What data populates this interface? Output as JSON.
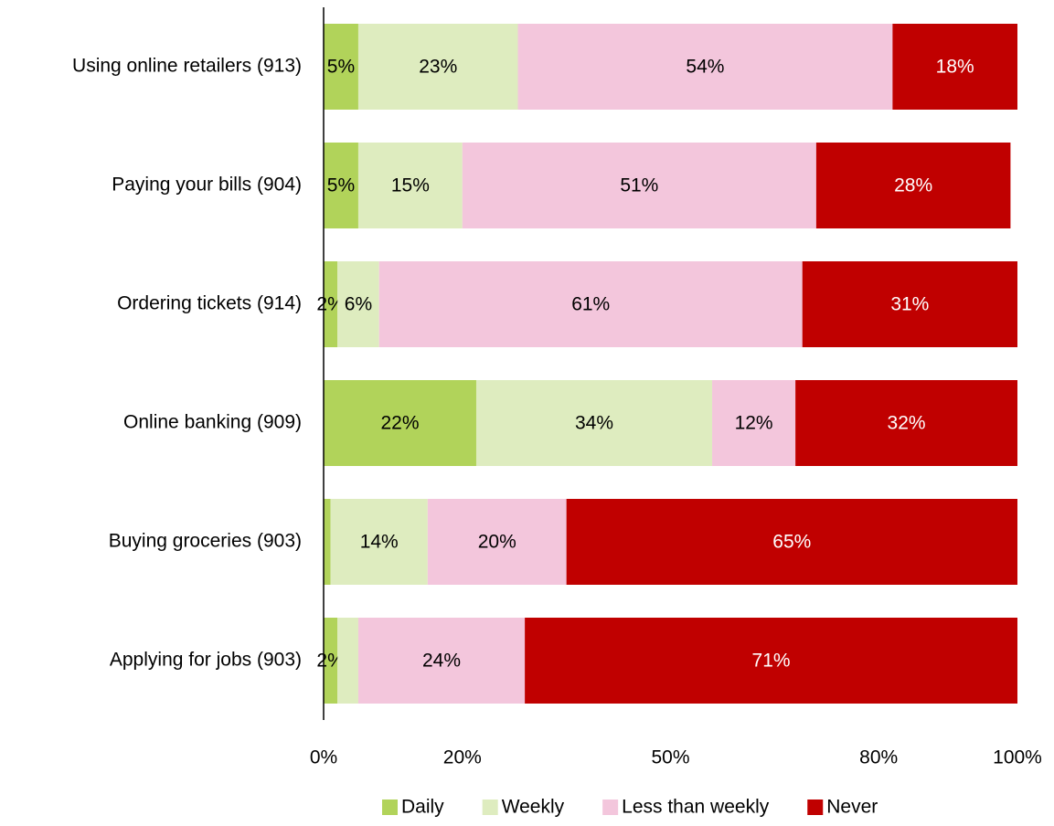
{
  "chart_data": {
    "type": "bar",
    "orientation": "horizontal",
    "stacked": true,
    "categories": [
      "Using online retailers (913)",
      "Paying your bills (904)",
      "Ordering tickets (914)",
      "Online banking (909)",
      "Buying groceries (903)",
      "Applying for jobs (903)"
    ],
    "series": [
      {
        "name": "Daily",
        "color": "#b1d35a",
        "label_color": "#000000",
        "values": [
          5,
          5,
          2,
          22,
          1,
          2
        ],
        "value_labels": [
          "5%",
          "5%",
          "2%",
          "22%",
          null,
          "2%"
        ]
      },
      {
        "name": "Weekly",
        "color": "#deecbf",
        "label_color": "#000000",
        "values": [
          23,
          15,
          6,
          34,
          14,
          3
        ],
        "value_labels": [
          "23%",
          "15%",
          "6%",
          "34%",
          "14%",
          null
        ]
      },
      {
        "name": "Less than weekly",
        "color": "#f3c6dc",
        "label_color": "#000000",
        "values": [
          54,
          51,
          61,
          12,
          20,
          24
        ],
        "value_labels": [
          "54%",
          "51%",
          "61%",
          "12%",
          "20%",
          "24%"
        ]
      },
      {
        "name": "Never",
        "color": "#c00000",
        "label_color": "#ffffff",
        "values": [
          18,
          28,
          31,
          32,
          65,
          71
        ],
        "value_labels": [
          "18%",
          "28%",
          "31%",
          "32%",
          "65%",
          "71%"
        ]
      }
    ],
    "xlim": [
      0,
      100
    ],
    "xticks": [
      {
        "value": 0,
        "label": "0%"
      },
      {
        "value": 20,
        "label": "20%"
      },
      {
        "value": 50,
        "label": "50%"
      },
      {
        "value": 80,
        "label": "80%"
      },
      {
        "value": 100,
        "label": "100%"
      }
    ],
    "legend": "bottom"
  }
}
